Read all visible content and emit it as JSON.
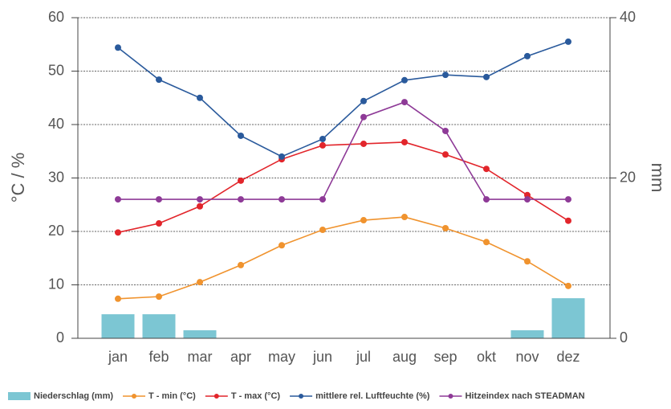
{
  "chart_data": {
    "type": "line",
    "categories": [
      "jan",
      "feb",
      "mar",
      "apr",
      "may",
      "jun",
      "jul",
      "aug",
      "sep",
      "okt",
      "nov",
      "dez"
    ],
    "y_label": "°C / %",
    "y2_label": "mm",
    "ylim": [
      0,
      60
    ],
    "yticks": [
      0,
      10,
      20,
      30,
      40,
      50,
      60
    ],
    "y2lim": [
      0,
      40
    ],
    "y2ticks": [
      0,
      20,
      40
    ],
    "grid": true,
    "legend": "bottom",
    "series": [
      {
        "name": "Niederschlag (mm)",
        "type": "bar",
        "axis": "y2",
        "color": "#7cc6d3",
        "values": [
          3,
          3,
          1,
          0,
          0,
          0,
          0,
          0,
          0,
          0,
          1,
          5
        ]
      },
      {
        "name": "T - min (°C)",
        "type": "line",
        "color": "#f0932e",
        "values": [
          7.4,
          7.8,
          10.5,
          13.7,
          17.4,
          20.3,
          22.1,
          22.7,
          20.6,
          18,
          14.4,
          9.8
        ]
      },
      {
        "name": "T - max (°C)",
        "type": "line",
        "color": "#e2252b",
        "values": [
          19.8,
          21.5,
          24.7,
          29.5,
          33.5,
          36.1,
          36.4,
          36.7,
          34.4,
          31.7,
          26.8,
          22
        ]
      },
      {
        "name": "mittlere rel. Luftfeuchte (%)",
        "type": "line",
        "color": "#2a5a9c",
        "values": [
          54.4,
          48.4,
          45,
          37.9,
          34,
          37.3,
          44.4,
          48.3,
          49.3,
          48.9,
          52.8,
          55.5
        ]
      },
      {
        "name": "Hitzeindex nach STEADMAN",
        "type": "line",
        "color": "#8e3a97",
        "values": [
          26,
          26,
          26,
          26,
          26,
          26,
          41.4,
          44.2,
          38.8,
          26,
          26,
          26
        ]
      }
    ]
  }
}
